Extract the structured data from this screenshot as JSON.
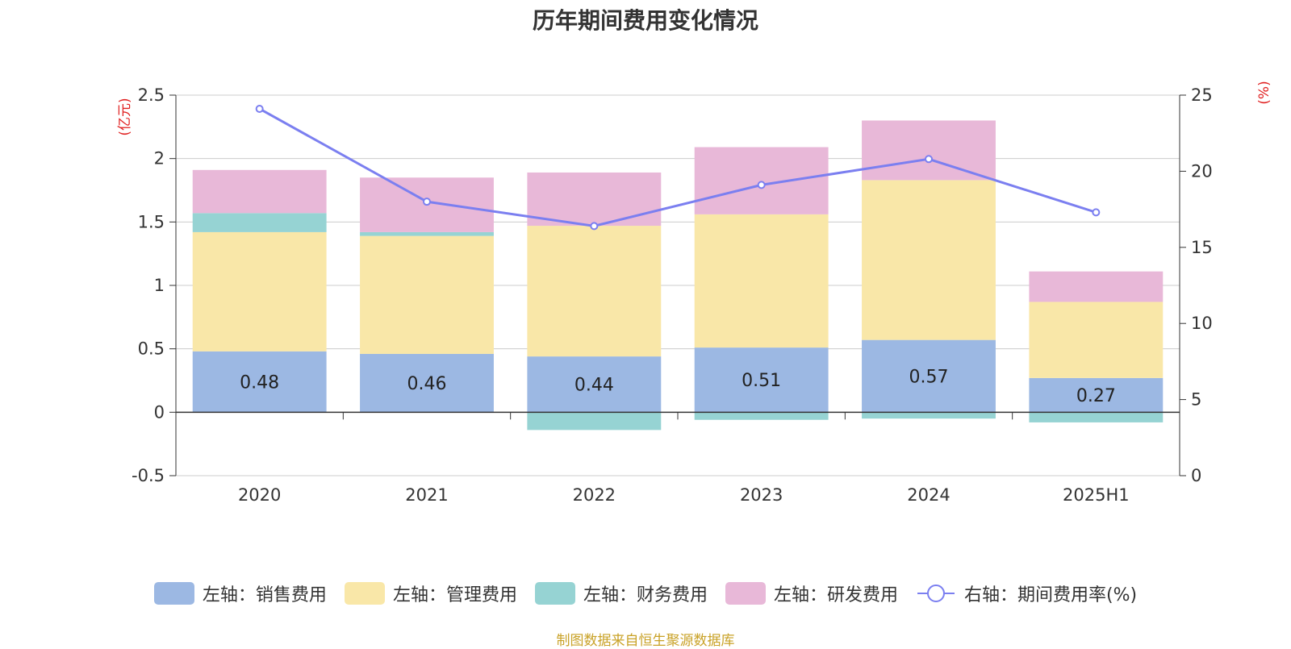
{
  "chart_data": {
    "type": "bar",
    "title": "历年期间费用变化情况",
    "categories": [
      "2020",
      "2021",
      "2022",
      "2023",
      "2024",
      "2025H1"
    ],
    "left_axis": {
      "unit_label": "(亿元)",
      "ylim": [
        -0.5,
        2.5
      ],
      "ticks": [
        "-0.5",
        "0",
        "0.5",
        "1",
        "1.5",
        "2",
        "2.5"
      ],
      "tick_values": [
        -0.5,
        0,
        0.5,
        1,
        1.5,
        2,
        2.5
      ]
    },
    "right_axis": {
      "unit_label": "(%)",
      "ylim": [
        0,
        25
      ],
      "ticks": [
        "0",
        "5",
        "10",
        "15",
        "20",
        "25"
      ],
      "tick_values": [
        0,
        5,
        10,
        15,
        20,
        25
      ]
    },
    "grid": true,
    "legend_position": "bottom",
    "series": [
      {
        "name": "左轴：销售费用",
        "axis": "left",
        "kind": "bar",
        "color": "#9cb8e3",
        "values": [
          0.48,
          0.46,
          0.44,
          0.51,
          0.57,
          0.27
        ],
        "labels": [
          "0.48",
          "0.46",
          "0.44",
          "0.51",
          "0.57",
          "0.27"
        ]
      },
      {
        "name": "左轴：管理费用",
        "axis": "left",
        "kind": "bar",
        "color": "#f9e7a8",
        "values": [
          0.94,
          0.93,
          1.03,
          1.05,
          1.26,
          0.6
        ]
      },
      {
        "name": "左轴：财务费用",
        "axis": "left",
        "kind": "bar",
        "color": "#96d3d3",
        "values": [
          0.15,
          0.03,
          -0.14,
          -0.06,
          -0.05,
          -0.08
        ]
      },
      {
        "name": "左轴：研发费用",
        "axis": "left",
        "kind": "bar",
        "color": "#e8b8d8",
        "values": [
          0.34,
          0.43,
          0.42,
          0.53,
          0.47,
          0.24
        ]
      },
      {
        "name": "右轴：期间费用率(%)",
        "axis": "right",
        "kind": "line",
        "color": "#7b7ff0",
        "values": [
          24.1,
          18.0,
          16.4,
          19.1,
          20.8,
          17.3
        ]
      }
    ],
    "source": "制图数据来自恒生聚源数据库"
  }
}
